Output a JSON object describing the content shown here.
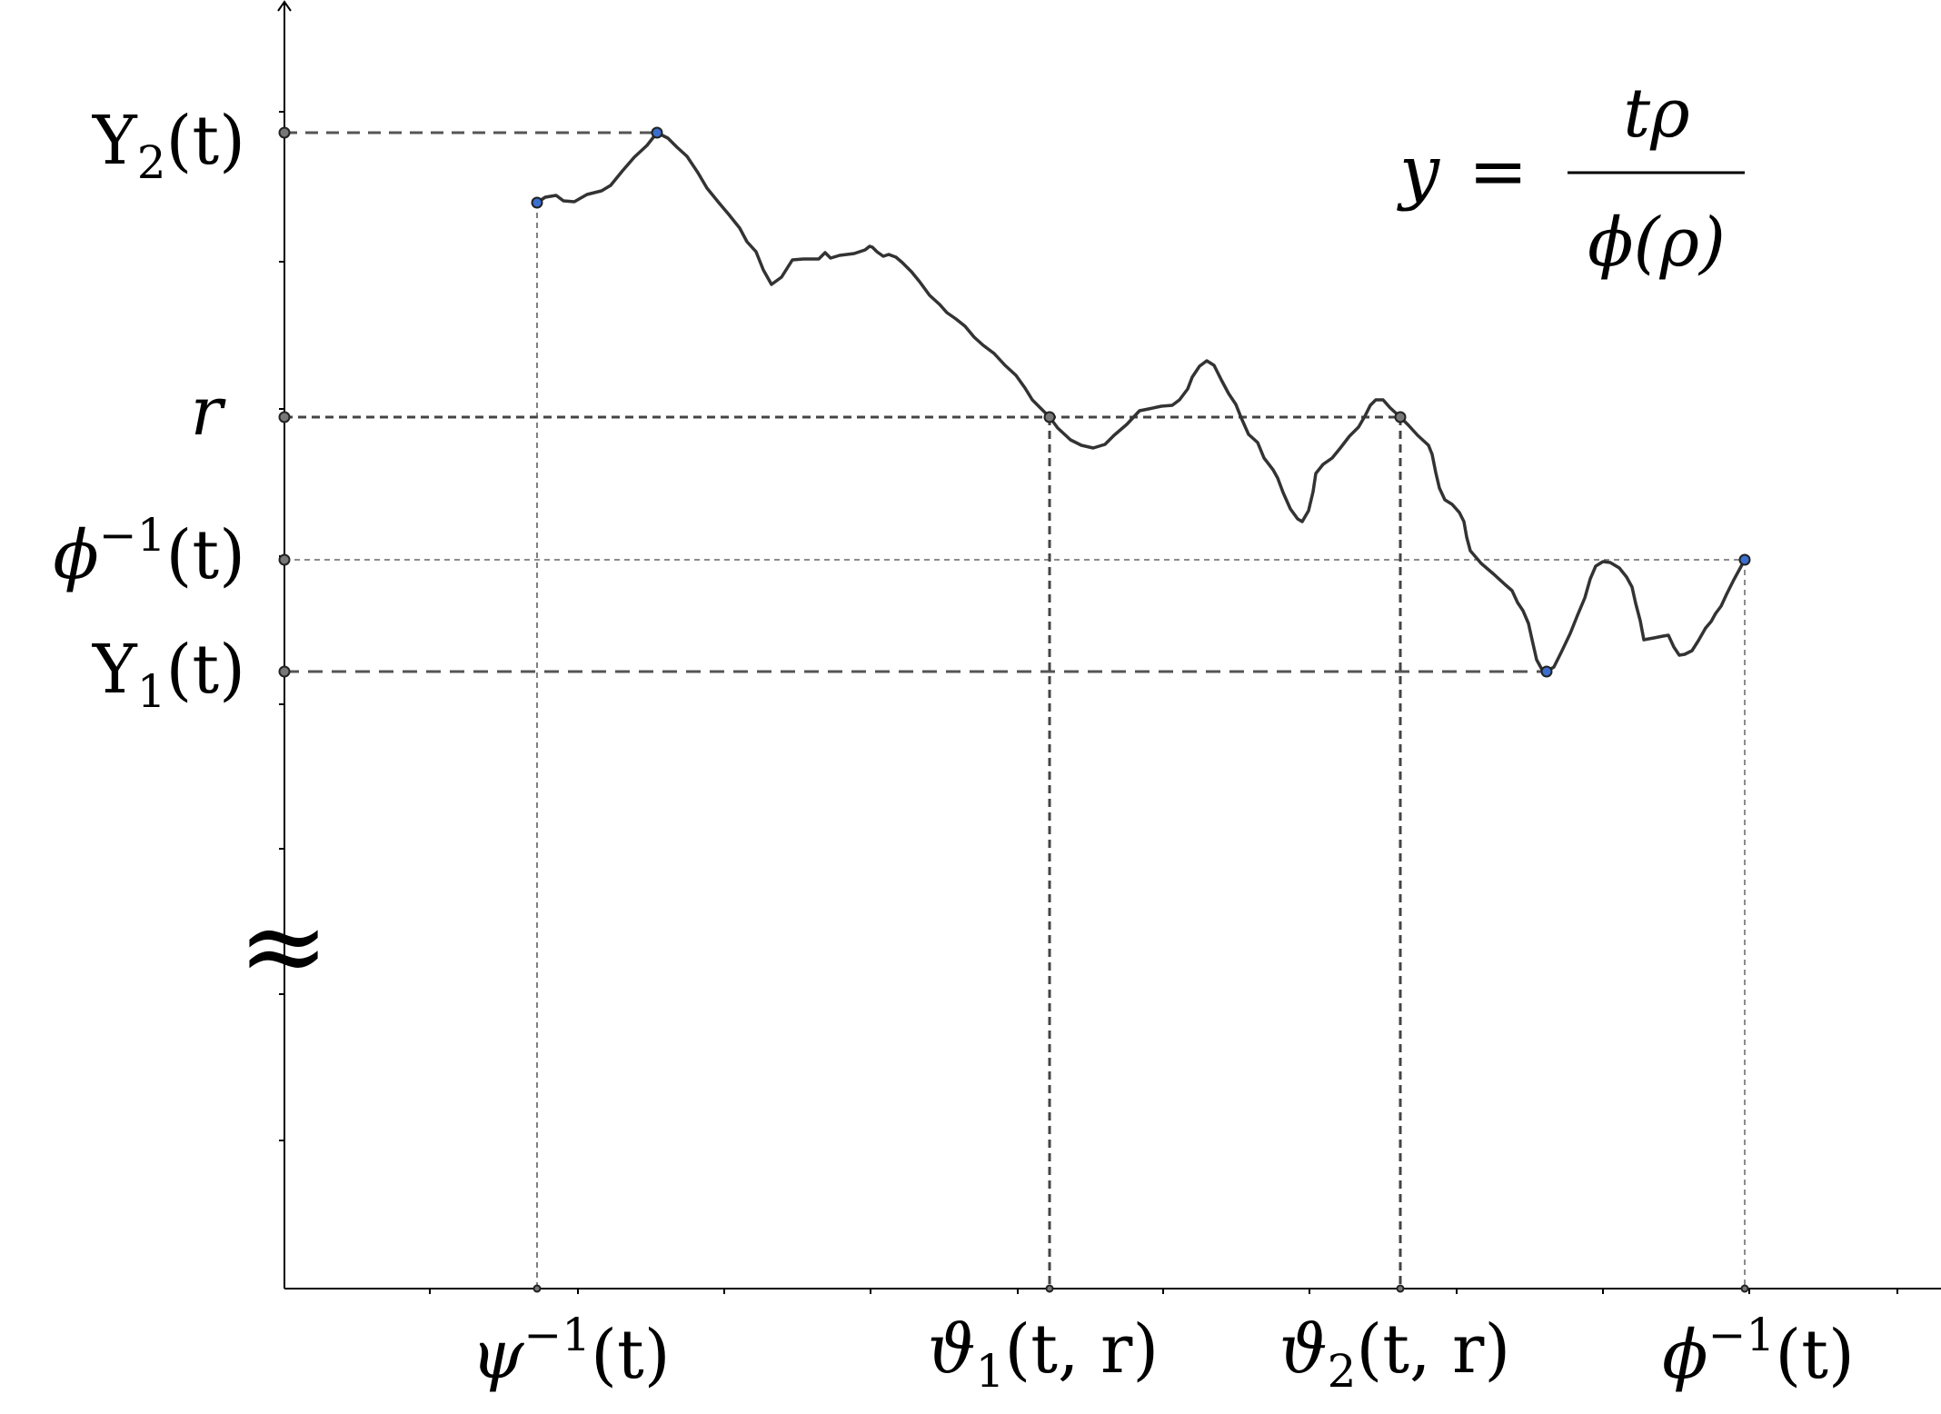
{
  "y_labels": {
    "upsilon2": {
      "base": "Υ",
      "sub": "2",
      "arg": "(t)"
    },
    "r": "r",
    "phi_inv": {
      "base": "ϕ",
      "sup": "−1",
      "arg": "(t)"
    },
    "upsilon1": {
      "base": "Υ",
      "sub": "1",
      "arg": "(t)"
    },
    "approx": "≈"
  },
  "x_labels": {
    "psi_inv": {
      "base": "ψ",
      "sup": "−1",
      "arg": "(t)"
    },
    "theta1": {
      "base": "ϑ",
      "sub": "1",
      "arg": "(t, r)"
    },
    "theta2": {
      "base": "ϑ",
      "sub": "2",
      "arg": "(t, r)"
    },
    "phi_inv": {
      "base": "ϕ",
      "sup": "−1",
      "arg": "(t)"
    }
  },
  "formula": {
    "lhs": "y",
    "eq": "=",
    "numerator": "tρ",
    "denominator": "ϕ(ρ)"
  },
  "colors": {
    "curve": "#333333",
    "guides": "#555555",
    "axis": "#000000",
    "point_blue": "#3a6fd0",
    "point_gray": "#777777"
  }
}
